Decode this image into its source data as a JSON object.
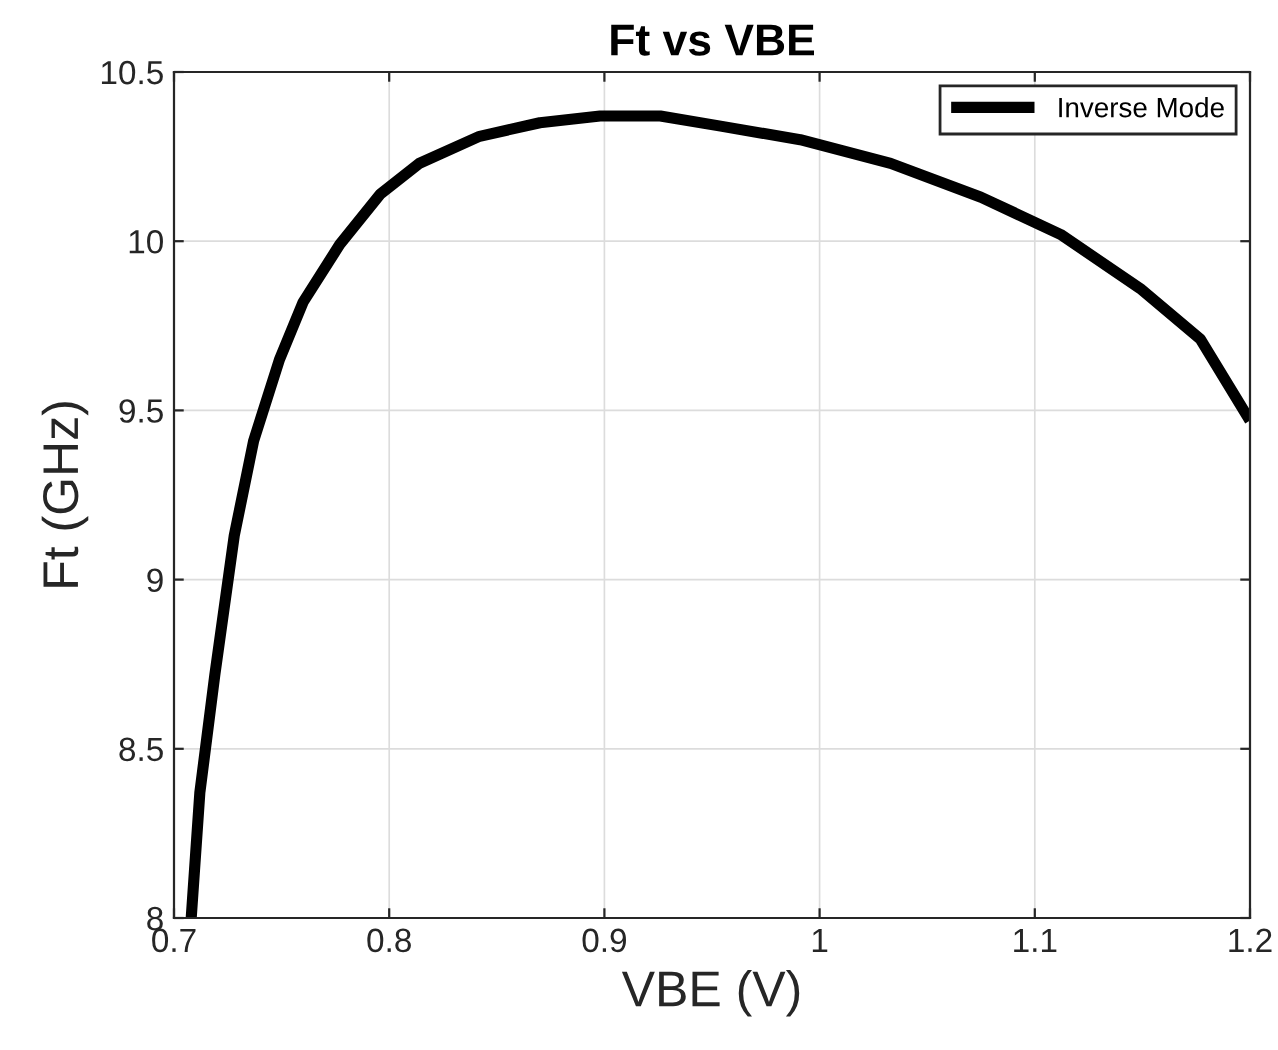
{
  "chart_data": {
    "type": "line",
    "title": "Ft vs VBE",
    "xlabel": "VBE (V)",
    "ylabel": "Ft (GHz)",
    "x": [
      0.708,
      0.712,
      0.719,
      0.728,
      0.737,
      0.749,
      0.76,
      0.777,
      0.796,
      0.814,
      0.842,
      0.87,
      0.898,
      0.926,
      0.954,
      0.991,
      1.033,
      1.075,
      1.112,
      1.149,
      1.177,
      1.2
    ],
    "series": [
      {
        "name": "Inverse Mode",
        "color": "#000000",
        "values": [
          8.0,
          8.37,
          8.72,
          9.13,
          9.41,
          9.65,
          9.82,
          9.99,
          10.14,
          10.23,
          10.31,
          10.35,
          10.37,
          10.37,
          10.34,
          10.3,
          10.23,
          10.13,
          10.02,
          9.86,
          9.71,
          9.47
        ]
      }
    ],
    "xlim": [
      0.7,
      1.2
    ],
    "ylim": [
      8,
      10.5
    ],
    "xticks": [
      0.7,
      0.8,
      0.9,
      1,
      1.1,
      1.2
    ],
    "yticks": [
      8,
      8.5,
      9,
      9.5,
      10,
      10.5
    ],
    "grid": true,
    "legend": "top right",
    "marker": "none",
    "line_style": "solid"
  }
}
